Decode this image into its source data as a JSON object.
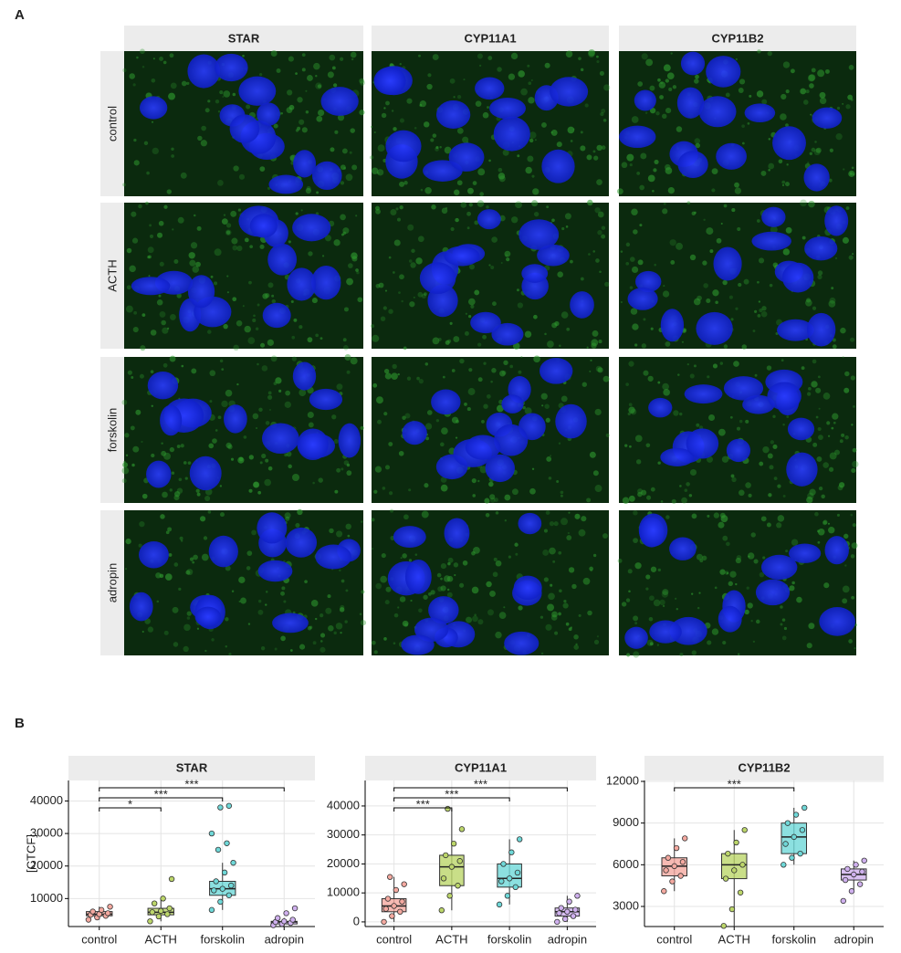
{
  "labels": {
    "a": "A",
    "b": "B"
  },
  "panel_a": {
    "columns": [
      "STAR",
      "CYP11A1",
      "CYP11B2"
    ],
    "rows": [
      "control",
      "ACTH",
      "forskolin",
      "adropin"
    ]
  },
  "chart_data": [
    {
      "type": "box",
      "title": "STAR",
      "ylabel": "[CTCF]",
      "categories": [
        "control",
        "ACTH",
        "forskolin",
        "adropin"
      ],
      "colors": [
        "#f4a9a0",
        "#bcd66a",
        "#6fd8d8",
        "#cfb0ee"
      ],
      "grid": true,
      "ylim": [
        1400,
        46300
      ],
      "yticks": [
        10000,
        20000,
        30000,
        40000
      ],
      "boxes": [
        {
          "low": 3500,
          "q1": 4700,
          "median": 5200,
          "q3": 6000,
          "high": 7500
        },
        {
          "low": 3000,
          "q1": 5000,
          "median": 5800,
          "q3": 7000,
          "high": 10000
        },
        {
          "low": 6500,
          "q1": 11000,
          "median": 13000,
          "q3": 15300,
          "high": 21000
        },
        {
          "low": 1800,
          "q1": 2200,
          "median": 2800,
          "q3": 3000,
          "high": 4000
        }
      ],
      "points": [
        [
          3500,
          4200,
          4700,
          5000,
          5200,
          5500,
          6000,
          6500,
          7500
        ],
        [
          3000,
          4500,
          5200,
          5800,
          6200,
          7000,
          8500,
          10000,
          16000
        ],
        [
          6500,
          9000,
          11000,
          12500,
          13000,
          14000,
          15300,
          18000,
          21000,
          25000,
          27000,
          30000,
          38000,
          38500
        ],
        [
          1800,
          2200,
          2500,
          2800,
          3000,
          3500,
          4000,
          5500,
          7000
        ]
      ],
      "significance": [
        {
          "groups": [
            "control",
            "adropin"
          ],
          "label": "***"
        },
        {
          "groups": [
            "control",
            "forskolin"
          ],
          "label": "***"
        },
        {
          "groups": [
            "control",
            "ACTH"
          ],
          "label": "*"
        }
      ]
    },
    {
      "type": "box",
      "title": "CYP11A1",
      "categories": [
        "control",
        "ACTH",
        "forskolin",
        "adropin"
      ],
      "colors": [
        "#f4a9a0",
        "#bcd66a",
        "#6fd8d8",
        "#cfb0ee"
      ],
      "grid": true,
      "ylim": [
        -1600,
        48800
      ],
      "yticks": [
        0,
        10000,
        20000,
        30000,
        40000
      ],
      "boxes": [
        {
          "low": 0,
          "q1": 3500,
          "median": 5500,
          "q3": 8000,
          "high": 15500
        },
        {
          "low": 4000,
          "q1": 12500,
          "median": 19000,
          "q3": 23000,
          "high": 39000
        },
        {
          "low": 6000,
          "q1": 12000,
          "median": 15000,
          "q3": 20000,
          "high": 28500
        },
        {
          "low": 0,
          "q1": 2000,
          "median": 3500,
          "q3": 4800,
          "high": 9000
        }
      ],
      "points": [
        [
          0,
          2000,
          3500,
          4500,
          5500,
          7000,
          8000,
          11000,
          13000,
          15500
        ],
        [
          4000,
          9000,
          12500,
          15000,
          19000,
          21000,
          23000,
          27000,
          32000,
          39000
        ],
        [
          6000,
          9000,
          12000,
          14000,
          15000,
          17000,
          20000,
          24000,
          28500
        ],
        [
          0,
          1000,
          2000,
          3000,
          3500,
          4200,
          4800,
          7000,
          9000
        ]
      ],
      "significance": [
        {
          "groups": [
            "control",
            "adropin"
          ],
          "label": "***"
        },
        {
          "groups": [
            "control",
            "forskolin"
          ],
          "label": "***"
        },
        {
          "groups": [
            "control",
            "ACTH"
          ],
          "label": "***"
        }
      ]
    },
    {
      "type": "box",
      "title": "CYP11B2",
      "categories": [
        "control",
        "ACTH",
        "forskolin",
        "adropin"
      ],
      "colors": [
        "#f4a9a0",
        "#bcd66a",
        "#6fd8d8",
        "#cfb0ee"
      ],
      "grid": true,
      "ylim": [
        1555,
        12065
      ],
      "yticks": [
        3000,
        6000,
        9000,
        12000
      ],
      "boxes": [
        {
          "low": 4100,
          "q1": 5200,
          "median": 5900,
          "q3": 6500,
          "high": 7900
        },
        {
          "low": 1600,
          "q1": 5000,
          "median": 6000,
          "q3": 6800,
          "high": 8500
        },
        {
          "low": 6000,
          "q1": 6800,
          "median": 8000,
          "q3": 9000,
          "high": 10100
        },
        {
          "low": 4100,
          "q1": 4900,
          "median": 5300,
          "q3": 5700,
          "high": 6300
        }
      ],
      "points": [
        [
          4100,
          4800,
          5200,
          5600,
          5900,
          6200,
          6500,
          7200,
          7900
        ],
        [
          1600,
          2800,
          4000,
          5000,
          5600,
          6000,
          6800,
          7600,
          8500
        ],
        [
          6000,
          6500,
          6800,
          7500,
          8000,
          8500,
          9000,
          9600,
          10100
        ],
        [
          3400,
          4100,
          4600,
          4900,
          5300,
          5500,
          5700,
          6000,
          6300
        ]
      ],
      "significance": [
        {
          "groups": [
            "control",
            "forskolin"
          ],
          "label": "***"
        }
      ]
    }
  ]
}
